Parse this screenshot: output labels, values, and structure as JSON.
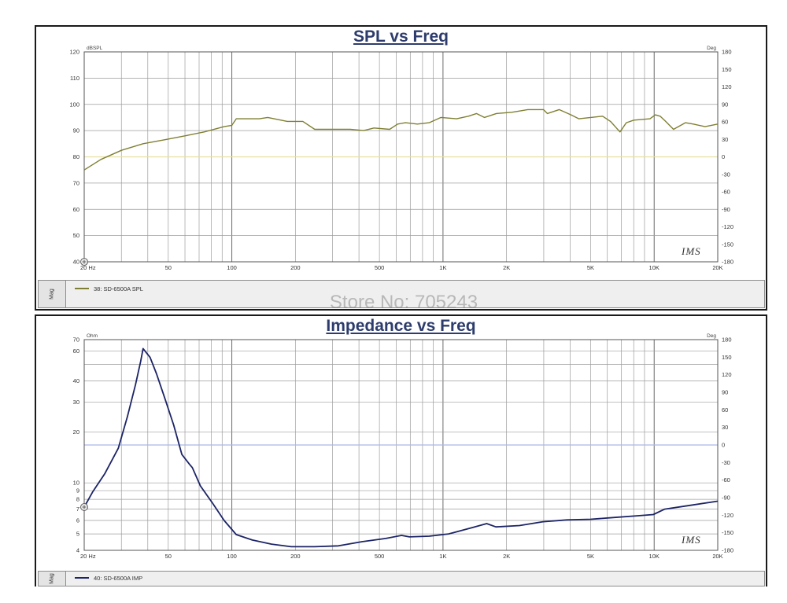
{
  "watermark": "Store No: 705243",
  "panels": [
    {
      "side_label": "Mag",
      "logo": "IMS"
    },
    {
      "side_label": "Mag",
      "logo": "IMS"
    }
  ],
  "chart_data": [
    {
      "type": "line",
      "title": "SPL vs Freq",
      "x_scale": "log",
      "xlim": [
        20,
        20000
      ],
      "x_ticks": [
        20,
        50,
        100,
        200,
        500,
        1000,
        2000,
        5000,
        10000,
        20000
      ],
      "x_tick_labels": [
        "20 Hz",
        "50",
        "100",
        "200",
        "500",
        "1K",
        "2K",
        "5K",
        "10K",
        "20K"
      ],
      "y_scale": "linear",
      "ylabel": "dBSPL",
      "ylim": [
        40,
        120
      ],
      "y_ticks": [
        120,
        110,
        100,
        90,
        80,
        70,
        60,
        50,
        40
      ],
      "y2label": "Deg",
      "y2lim": [
        -180,
        180
      ],
      "y2_ticks": [
        180,
        150,
        120,
        90,
        60,
        30,
        0,
        -30,
        -60,
        -90,
        -120,
        -150,
        -180
      ],
      "grid": true,
      "legend": "bottom",
      "reference_line": {
        "axis": "y2",
        "value": 0,
        "color": "#e6e0a2"
      },
      "series": [
        {
          "name": "38: SD-6500A SPL",
          "color": "#7f7f33",
          "x": [
            20,
            24,
            30,
            38,
            48,
            60,
            74,
            92,
            100,
            105,
            135,
            148,
            183,
            217,
            247,
            294,
            364,
            421,
            471,
            559,
            610,
            664,
            756,
            860,
            978,
            1160,
            1320,
            1440,
            1570,
            1790,
            2120,
            2520,
            2990,
            3120,
            3550,
            4040,
            4400,
            5010,
            5700,
            6210,
            6890,
            7380,
            8010,
            9550,
            10130,
            10670,
            11330,
            12350,
            14050,
            15320,
            17420,
            20000
          ],
          "y": [
            75,
            79,
            82.5,
            85,
            86.5,
            88,
            89.5,
            91.5,
            92,
            94.5,
            94.5,
            95,
            93.5,
            93.5,
            90.5,
            90.5,
            90.5,
            90,
            91,
            90.5,
            92.5,
            93,
            92.5,
            93,
            95,
            94.5,
            95.5,
            96.5,
            95,
            96.5,
            97,
            98,
            98,
            96.5,
            98,
            96,
            94.5,
            95,
            95.5,
            93.5,
            89.5,
            93,
            94,
            94.5,
            96,
            95.5,
            93.5,
            90.5,
            93,
            92.5,
            91.5,
            92.5
          ]
        }
      ]
    },
    {
      "type": "line",
      "title": "Impedance vs Freq",
      "x_scale": "log",
      "xlim": [
        20,
        20000
      ],
      "x_ticks": [
        20,
        50,
        100,
        200,
        500,
        1000,
        2000,
        5000,
        10000,
        20000
      ],
      "x_tick_labels": [
        "20 Hz",
        "50",
        "100",
        "200",
        "500",
        "1K",
        "2K",
        "5K",
        "10K",
        "20K"
      ],
      "y_scale": "log",
      "ylabel": "Ohm",
      "ylim": [
        4,
        70
      ],
      "y_ticks": [
        70,
        60,
        40,
        30,
        20,
        10,
        9,
        8,
        7,
        6,
        5,
        4
      ],
      "y2label": "Deg",
      "y2lim": [
        -180,
        180
      ],
      "y2_ticks": [
        180,
        150,
        120,
        90,
        60,
        30,
        0,
        -30,
        -60,
        -90,
        -120,
        -150,
        -180
      ],
      "grid": true,
      "legend": "bottom",
      "reference_line": {
        "axis": "y2",
        "value": 0,
        "color": "#aab8e8"
      },
      "series": [
        {
          "name": "40: SD-6500A IMP",
          "color": "#1c2466",
          "x": [
            20,
            22,
            25,
            29,
            32,
            35,
            37,
            38,
            41,
            44,
            48,
            53,
            58,
            63,
            65,
            71,
            81,
            92,
            105,
            125,
            154,
            191,
            247,
            320,
            414,
            536,
            636,
            693,
            860,
            1065,
            1380,
            1610,
            1780,
            2300,
            2980,
            3860,
            5000,
            6490,
            8400,
            9900,
            11220,
            14050,
            20000
          ],
          "y": [
            7.2,
            8.9,
            11.3,
            16,
            24.5,
            38,
            52,
            62,
            55,
            44,
            32,
            22,
            14.7,
            12.9,
            12.3,
            9.6,
            7.6,
            6.0,
            4.95,
            4.6,
            4.35,
            4.2,
            4.2,
            4.25,
            4.5,
            4.7,
            4.9,
            4.8,
            4.85,
            5.0,
            5.45,
            5.75,
            5.5,
            5.6,
            5.9,
            6.05,
            6.1,
            6.25,
            6.4,
            6.5,
            7.0,
            7.3,
            7.8
          ]
        }
      ]
    }
  ]
}
